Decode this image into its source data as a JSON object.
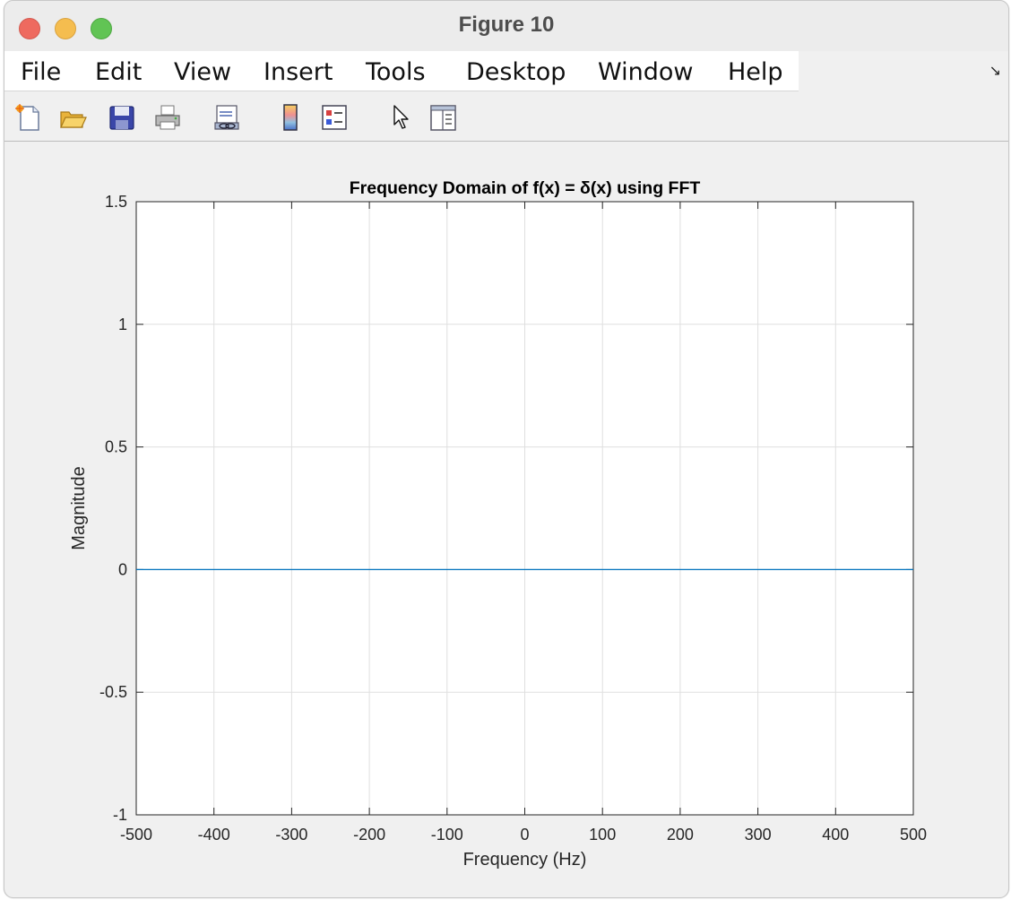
{
  "window": {
    "title": "Figure 10"
  },
  "menu": {
    "items": [
      "File",
      "Edit",
      "View",
      "Insert",
      "Tools",
      "Desktop",
      "Window",
      "Help"
    ]
  },
  "toolbar": {
    "icons": [
      "new-figure-icon",
      "open-file-icon",
      "save-icon",
      "print-icon",
      "link-plot-icon",
      "colorbar-icon",
      "legend-icon",
      "pointer-icon",
      "property-inspector-icon"
    ]
  },
  "chart_data": {
    "type": "line",
    "title": "Frequency Domain of f(x) = δ(x) using FFT",
    "xlabel": "Frequency (Hz)",
    "ylabel": "Magnitude",
    "xlim": [
      -500,
      500
    ],
    "ylim": [
      -1,
      1.5
    ],
    "xticks": [
      "-500",
      "-400",
      "-300",
      "-200",
      "-100",
      "0",
      "100",
      "200",
      "300",
      "400",
      "500"
    ],
    "yticks": [
      "-1",
      "-0.5",
      "0",
      "0.5",
      "1",
      "1.5"
    ],
    "grid": true,
    "series": [
      {
        "color": "#0072bd",
        "x": [
          -500,
          500
        ],
        "y": [
          0,
          0
        ]
      }
    ]
  }
}
